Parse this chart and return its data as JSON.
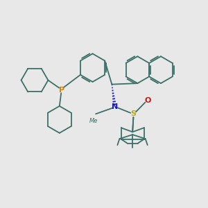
{
  "bg_color": "#e8e8e8",
  "bond_color": "#3a7068",
  "p_color": "#cc8800",
  "n_color": "#1515cc",
  "s_color": "#bbaa10",
  "o_color": "#cc1515",
  "lw": 1.3,
  "dbl_off": 0.07,
  "fig_w": 3.0,
  "fig_h": 3.0,
  "dpi": 100,
  "xlim": [
    0,
    10
  ],
  "ylim": [
    0,
    10
  ]
}
